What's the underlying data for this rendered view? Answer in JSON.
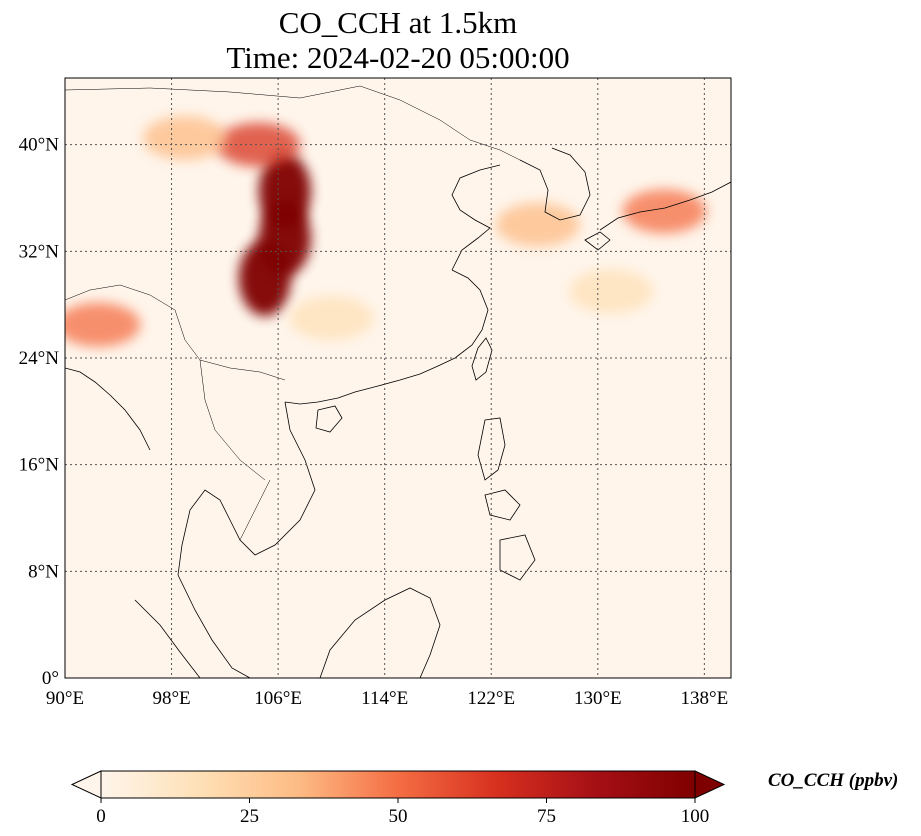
{
  "title": {
    "line1": "CO_CCH at 1.5km",
    "line2": "Time: 2024-02-20 05:00:00"
  },
  "map": {
    "lon_range": [
      90,
      140
    ],
    "lat_range": [
      0,
      45
    ],
    "lon_ticks": [
      {
        "value": 90,
        "label": "90°E"
      },
      {
        "value": 98,
        "label": "98°E"
      },
      {
        "value": 106,
        "label": "106°E"
      },
      {
        "value": 114,
        "label": "114°E"
      },
      {
        "value": 122,
        "label": "122°E"
      },
      {
        "value": 130,
        "label": "130°E"
      },
      {
        "value": 138,
        "label": "138°E"
      }
    ],
    "lat_ticks": [
      {
        "value": 0,
        "label": "0°"
      },
      {
        "value": 8,
        "label": "8°N"
      },
      {
        "value": 16,
        "label": "16°N"
      },
      {
        "value": 24,
        "label": "24°N"
      },
      {
        "value": 32,
        "label": "32°N"
      },
      {
        "value": 40,
        "label": "40°N"
      }
    ],
    "gridlines": true,
    "background_color": "#fff5eb",
    "plumes": [
      {
        "lon": 106.5,
        "lat": 36.5,
        "value": 100
      },
      {
        "lon": 105.0,
        "lat": 30.0,
        "value": 100
      },
      {
        "lon": 106.5,
        "lat": 33.0,
        "value": 95
      },
      {
        "lon": 104.5,
        "lat": 40.0,
        "value": 60
      },
      {
        "lon": 99.0,
        "lat": 40.5,
        "value": 30
      },
      {
        "lon": 92.5,
        "lat": 26.5,
        "value": 45
      },
      {
        "lon": 125.5,
        "lat": 34.0,
        "value": 40
      },
      {
        "lon": 135.0,
        "lat": 35.0,
        "value": 50
      },
      {
        "lon": 131.0,
        "lat": 29.0,
        "value": 12
      },
      {
        "lon": 110.0,
        "lat": 27.0,
        "value": 15
      }
    ]
  },
  "colorbar": {
    "label": "CO_CCH (ppbv)",
    "min": 0,
    "max": 100,
    "extend": "both",
    "colormap": "OrRd",
    "colors": [
      "#fff5eb",
      "#fee0b6",
      "#fdbb84",
      "#f46d43",
      "#d7301f",
      "#a50f15",
      "#7f0000"
    ],
    "ticks": [
      {
        "value": 0,
        "label": "0"
      },
      {
        "value": 25,
        "label": "25"
      },
      {
        "value": 50,
        "label": "50"
      },
      {
        "value": 75,
        "label": "75"
      },
      {
        "value": 100,
        "label": "100"
      }
    ]
  }
}
